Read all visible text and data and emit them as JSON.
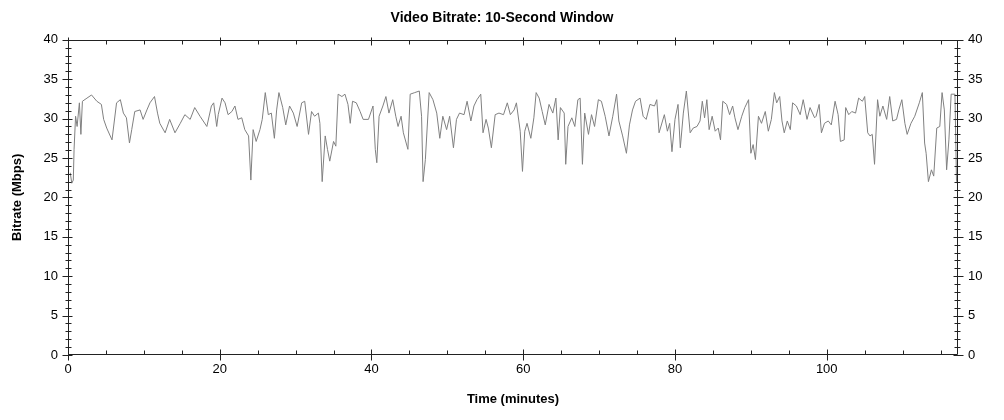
{
  "chart_data": {
    "type": "line",
    "title": "Video Bitrate: 10-Second Window",
    "xlabel": "Time (minutes)",
    "ylabel": "Bitrate (Mbps)",
    "color": "#808080",
    "x": [
      0.3,
      0.5,
      0.7,
      0.8,
      1.0,
      1.2,
      1.5,
      1.7,
      1.9,
      2.5,
      3.1,
      3.8,
      4.4,
      4.7,
      5.1,
      5.8,
      6.4,
      6.9,
      7.3,
      7.7,
      8.1,
      8.4,
      8.8,
      9.5,
      9.9,
      10.4,
      10.8,
      11.4,
      11.8,
      12.1,
      12.8,
      13.4,
      14.1,
      14.8,
      15.4,
      16.1,
      16.7,
      17.4,
      18.3,
      18.9,
      19.2,
      19.6,
      19.8,
      20.3,
      20.7,
      21.1,
      21.6,
      22.0,
      22.4,
      22.9,
      23.3,
      23.8,
      24.1,
      24.4,
      24.8,
      25.3,
      25.6,
      26.0,
      26.4,
      26.8,
      27.2,
      27.5,
      27.8,
      28.3,
      28.7,
      29.2,
      29.7,
      30.2,
      30.8,
      31.2,
      31.7,
      32.1,
      32.5,
      33.0,
      33.2,
      33.5,
      33.9,
      34.2,
      34.5,
      35.0,
      35.3,
      35.6,
      36.1,
      36.5,
      36.9,
      37.2,
      37.5,
      38.0,
      38.5,
      38.9,
      39.6,
      40.2,
      40.5,
      40.7,
      41.0,
      41.5,
      41.9,
      42.3,
      42.8,
      43.2,
      43.5,
      43.9,
      44.2,
      44.8,
      45.1,
      45.7,
      46.3,
      46.6,
      46.8,
      47.1,
      47.6,
      48.1,
      48.6,
      49.0,
      49.4,
      49.9,
      50.3,
      50.8,
      51.2,
      51.6,
      52.2,
      52.6,
      53.1,
      53.5,
      53.9,
      54.4,
      54.7,
      55.1,
      55.4,
      55.8,
      56.3,
      56.8,
      57.4,
      57.9,
      58.3,
      58.8,
      59.1,
      59.6,
      59.9,
      60.2,
      60.5,
      61.0,
      61.4,
      61.7,
      62.1,
      62.5,
      62.9,
      63.4,
      63.9,
      64.3,
      64.6,
      64.9,
      65.4,
      65.6,
      65.9,
      66.4,
      66.8,
      67.2,
      67.5,
      67.8,
      68.1,
      68.6,
      69.0,
      69.4,
      69.9,
      70.3,
      70.8,
      71.3,
      71.8,
      72.3,
      72.6,
      73.1,
      73.6,
      74.0,
      74.4,
      74.8,
      75.4,
      75.8,
      76.2,
      76.7,
      77.3,
      77.6,
      77.9,
      78.6,
      79.0,
      79.3,
      79.6,
      80.0,
      80.4,
      80.7,
      81.1,
      81.5,
      82.0,
      82.4,
      82.9,
      83.3,
      83.6,
      83.9,
      84.2,
      84.5,
      84.9,
      85.3,
      85.7,
      86.0,
      86.3,
      86.8,
      87.2,
      87.6,
      87.9,
      88.3,
      88.8,
      89.2,
      89.7,
      90.0,
      90.3,
      90.6,
      91.0,
      91.4,
      91.9,
      92.3,
      92.7,
      93.1,
      93.4,
      93.8,
      94.1,
      94.4,
      94.8,
      95.2,
      95.5,
      96.0,
      96.5,
      96.9,
      97.4,
      97.8,
      98.4,
      98.6,
      99.0,
      99.3,
      99.7,
      100.2,
      100.6,
      101.1,
      101.5,
      101.8,
      102.3,
      102.5,
      102.9,
      103.3,
      103.8,
      104.2,
      104.7,
      105.0,
      105.4,
      105.7,
      106.0,
      106.3,
      106.7,
      107.0,
      107.4,
      107.9,
      108.3,
      108.7,
      109.2,
      109.5,
      109.9,
      110.3,
      110.6,
      111.1,
      111.6,
      112.2,
      112.6,
      112.9,
      113.1,
      113.4,
      113.8,
      114.1,
      114.5,
      114.9,
      115.2,
      115.5,
      115.8,
      116.1,
      116.4,
      116.9,
      117.1,
      117.2
    ],
    "values": [
      23.1,
      21.8,
      22.2,
      26.1,
      30.3,
      29.0,
      32.0,
      28.0,
      32.2,
      32.6,
      33.0,
      32.2,
      31.8,
      29.9,
      28.8,
      27.3,
      32.0,
      32.4,
      30.7,
      30.1,
      26.9,
      28.6,
      30.9,
      31.1,
      29.9,
      31.1,
      32.0,
      32.8,
      30.7,
      29.4,
      28.2,
      29.9,
      28.2,
      29.4,
      30.5,
      29.9,
      31.4,
      30.3,
      29.0,
      31.6,
      32.0,
      29.0,
      30.5,
      32.6,
      32.0,
      30.5,
      30.9,
      31.6,
      29.9,
      30.1,
      28.6,
      27.8,
      22.2,
      28.6,
      27.1,
      28.6,
      29.9,
      33.3,
      30.5,
      30.7,
      27.5,
      31.1,
      33.3,
      31.4,
      29.2,
      31.6,
      30.7,
      29.0,
      32.0,
      32.2,
      28.0,
      30.9,
      30.3,
      30.7,
      29.4,
      22.0,
      27.8,
      26.1,
      24.6,
      27.1,
      26.5,
      33.1,
      32.8,
      33.1,
      31.8,
      29.4,
      32.2,
      32.0,
      30.9,
      29.9,
      29.9,
      31.6,
      26.1,
      24.4,
      30.3,
      31.6,
      32.8,
      30.7,
      32.4,
      30.3,
      29.0,
      30.3,
      28.2,
      26.1,
      33.1,
      33.3,
      33.5,
      30.3,
      22.0,
      24.8,
      33.3,
      32.4,
      30.7,
      27.5,
      30.3,
      28.6,
      30.3,
      26.3,
      29.9,
      30.7,
      30.5,
      32.2,
      29.7,
      31.6,
      32.4,
      33.1,
      28.2,
      29.9,
      28.8,
      26.3,
      30.5,
      30.7,
      30.5,
      32.0,
      30.5,
      31.1,
      32.0,
      28.4,
      23.3,
      28.4,
      29.4,
      27.5,
      30.1,
      33.3,
      32.6,
      30.9,
      29.2,
      31.8,
      30.7,
      32.6,
      27.3,
      31.4,
      30.7,
      24.2,
      29.0,
      30.1,
      29.0,
      32.4,
      32.6,
      24.2,
      30.7,
      28.0,
      30.5,
      29.0,
      32.4,
      32.2,
      30.3,
      27.8,
      30.3,
      33.1,
      29.7,
      27.8,
      25.6,
      29.2,
      31.1,
      32.2,
      32.6,
      30.3,
      29.9,
      31.8,
      31.6,
      32.4,
      28.2,
      30.5,
      28.4,
      29.4,
      25.8,
      29.9,
      31.8,
      26.3,
      30.7,
      33.5,
      28.2,
      28.8,
      29.0,
      29.7,
      32.2,
      30.1,
      32.4,
      28.6,
      30.3,
      28.4,
      28.8,
      27.3,
      32.2,
      31.8,
      30.5,
      31.6,
      30.1,
      28.6,
      30.3,
      31.4,
      32.4,
      25.6,
      26.7,
      24.8,
      30.3,
      29.4,
      30.9,
      28.4,
      29.9,
      33.3,
      32.0,
      32.8,
      29.7,
      28.2,
      29.7,
      28.6,
      32.0,
      31.6,
      30.5,
      32.4,
      29.9,
      31.4,
      30.1,
      30.3,
      31.8,
      28.2,
      29.4,
      29.7,
      29.2,
      32.2,
      30.5,
      27.1,
      27.3,
      31.4,
      30.5,
      30.9,
      30.7,
      32.6,
      32.2,
      32.8,
      28.2,
      27.8,
      28.0,
      24.2,
      32.4,
      30.3,
      31.6,
      29.9,
      32.8,
      29.7,
      29.9,
      31.1,
      32.4,
      29.4,
      28.0,
      29.4,
      30.3,
      32.0,
      33.3,
      26.9,
      25.6,
      22.0,
      23.5,
      22.7,
      28.8,
      29.0,
      33.3,
      31.1,
      23.5,
      27.3,
      33.1,
      33.1,
      22.2,
      21.8
    ],
    "xlim": [
      0,
      117.3
    ],
    "xticks": [
      0,
      {
        "value": 5,
        "label": null
      },
      {
        "value": 10,
        "label": null
      },
      {
        "value": 15,
        "label": null
      },
      20,
      {
        "value": 25,
        "label": null
      },
      {
        "value": 30,
        "label": null
      },
      {
        "value": 35,
        "label": null
      },
      40,
      {
        "value": 45,
        "label": null
      },
      {
        "value": 50,
        "label": null
      },
      {
        "value": 55,
        "label": null
      },
      60,
      {
        "value": 65,
        "label": null
      },
      {
        "value": 70,
        "label": null
      },
      {
        "value": 75,
        "label": null
      },
      80,
      {
        "value": 85,
        "label": null
      },
      {
        "value": 90,
        "label": null
      },
      {
        "value": 95,
        "label": null
      },
      100,
      {
        "value": 105,
        "label": null
      },
      {
        "value": 110,
        "label": null
      },
      {
        "value": 115,
        "label": null
      }
    ],
    "ylim": [
      0,
      40
    ],
    "yticks": [
      0,
      {
        "value": 1,
        "label": null
      },
      {
        "value": 2,
        "label": null
      },
      {
        "value": 3,
        "label": null
      },
      {
        "value": 4,
        "label": null
      },
      5,
      {
        "value": 6,
        "label": null
      },
      {
        "value": 7,
        "label": null
      },
      {
        "value": 8,
        "label": null
      },
      {
        "value": 9,
        "label": null
      },
      10,
      {
        "value": 11,
        "label": null
      },
      {
        "value": 12,
        "label": null
      },
      {
        "value": 13,
        "label": null
      },
      {
        "value": 14,
        "label": null
      },
      15,
      {
        "value": 16,
        "label": null
      },
      {
        "value": 17,
        "label": null
      },
      {
        "value": 18,
        "label": null
      },
      {
        "value": 19,
        "label": null
      },
      20,
      {
        "value": 21,
        "label": null
      },
      {
        "value": 22,
        "label": null
      },
      {
        "value": 23,
        "label": null
      },
      {
        "value": 24,
        "label": null
      },
      25,
      {
        "value": 26,
        "label": null
      },
      {
        "value": 27,
        "label": null
      },
      {
        "value": 28,
        "label": null
      },
      {
        "value": 29,
        "label": null
      },
      30,
      {
        "value": 31,
        "label": null
      },
      {
        "value": 32,
        "label": null
      },
      {
        "value": 33,
        "label": null
      },
      {
        "value": 34,
        "label": null
      },
      35,
      {
        "value": 36,
        "label": null
      },
      {
        "value": 37,
        "label": null
      },
      {
        "value": 38,
        "label": null
      },
      {
        "value": 39,
        "label": null
      },
      40
    ],
    "y2lim": [
      0,
      40
    ],
    "y2ticks": [
      0,
      {
        "value": 1,
        "label": null
      },
      {
        "value": 2,
        "label": null
      },
      {
        "value": 3,
        "label": null
      },
      {
        "value": 4,
        "label": null
      },
      5,
      {
        "value": 6,
        "label": null
      },
      {
        "value": 7,
        "label": null
      },
      {
        "value": 8,
        "label": null
      },
      {
        "value": 9,
        "label": null
      },
      10,
      {
        "value": 11,
        "label": null
      },
      {
        "value": 12,
        "label": null
      },
      {
        "value": 13,
        "label": null
      },
      {
        "value": 14,
        "label": null
      },
      15,
      {
        "value": 16,
        "label": null
      },
      {
        "value": 17,
        "label": null
      },
      {
        "value": 18,
        "label": null
      },
      {
        "value": 19,
        "label": null
      },
      20,
      {
        "value": 21,
        "label": null
      },
      {
        "value": 22,
        "label": null
      },
      {
        "value": 23,
        "label": null
      },
      {
        "value": 24,
        "label": null
      },
      25,
      {
        "value": 26,
        "label": null
      },
      {
        "value": 27,
        "label": null
      },
      {
        "value": 28,
        "label": null
      },
      {
        "value": 29,
        "label": null
      },
      30,
      {
        "value": 31,
        "label": null
      },
      {
        "value": 32,
        "label": null
      },
      {
        "value": 33,
        "label": null
      },
      {
        "value": 34,
        "label": null
      },
      35,
      {
        "value": 36,
        "label": null
      },
      {
        "value": 37,
        "label": null
      },
      {
        "value": 38,
        "label": null
      },
      {
        "value": 39,
        "label": null
      },
      40
    ]
  }
}
